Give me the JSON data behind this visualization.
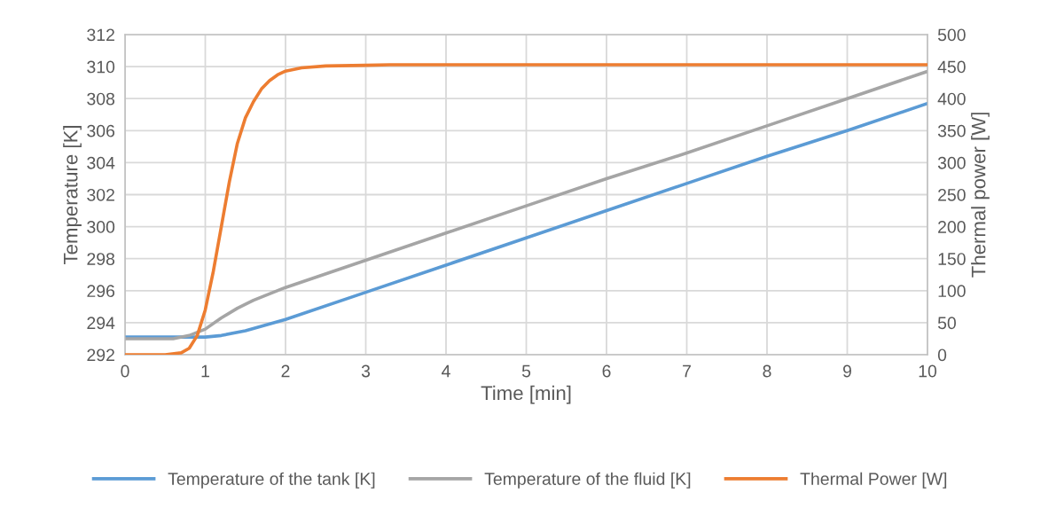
{
  "chart_data": {
    "type": "line",
    "xlabel": "Time [min]",
    "ylabel": "Temperature [K]",
    "y2label": "Thermal power [W]",
    "xlim": [
      0,
      10
    ],
    "xticks": [
      0,
      1,
      2,
      3,
      4,
      5,
      6,
      7,
      8,
      9,
      10
    ],
    "ylim": [
      292,
      312
    ],
    "yticks": [
      292,
      294,
      296,
      298,
      300,
      302,
      304,
      306,
      308,
      310,
      312
    ],
    "y2lim": [
      0,
      500
    ],
    "y2ticks": [
      0,
      50,
      100,
      150,
      200,
      250,
      300,
      350,
      400,
      450,
      500
    ],
    "grid": true,
    "legend": "bottom",
    "marker": "none",
    "line_style": "solid",
    "series": [
      {
        "name": "Temperature of the tank [K]",
        "color": "#5b9bd5",
        "x": [
          0,
          0.5,
          1.0,
          1.2,
          1.5,
          2,
          3,
          4,
          5,
          6,
          7,
          8,
          9,
          10
        ],
        "values": [
          293.1,
          293.1,
          293.1,
          293.2,
          293.5,
          294.2,
          295.9,
          297.6,
          299.3,
          301.0,
          302.7,
          304.4,
          306.0,
          307.7
        ]
      },
      {
        "name": "Temperature of the fluid [K]",
        "color": "#a5a5a5",
        "x": [
          0,
          0.6,
          0.8,
          1.0,
          1.2,
          1.4,
          1.6,
          2,
          3,
          4,
          5,
          6,
          7,
          8,
          9,
          10
        ],
        "values": [
          293.0,
          293.0,
          293.2,
          293.6,
          294.3,
          294.9,
          295.4,
          296.2,
          297.9,
          299.6,
          301.3,
          303.0,
          304.6,
          306.3,
          308.0,
          309.7
        ]
      },
      {
        "name": "Thermal Power [W]",
        "color": "#ed7d31",
        "axis": "y2",
        "x": [
          0,
          0.5,
          0.7,
          0.8,
          0.9,
          1.0,
          1.1,
          1.2,
          1.3,
          1.4,
          1.5,
          1.6,
          1.7,
          1.8,
          1.9,
          2.0,
          2.2,
          2.5,
          3,
          3.3,
          10
        ],
        "values": [
          0,
          0,
          3,
          10,
          30,
          70,
          130,
          200,
          270,
          330,
          370,
          395,
          415,
          428,
          437,
          443,
          448,
          451,
          452,
          453,
          453
        ]
      }
    ]
  }
}
